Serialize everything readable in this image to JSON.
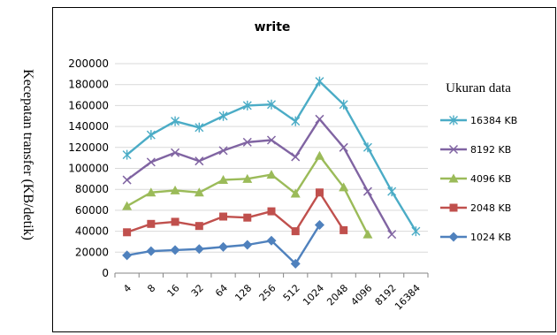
{
  "chart_data": {
    "type": "line",
    "title": "write",
    "ylabel": "Kecepatan transfer (KB/detik)",
    "xlabel": "",
    "legend_title": "Ukuran data",
    "legend_position": "right",
    "grid": true,
    "ylim": [
      0,
      200000
    ],
    "yticks": [
      "0",
      "20000",
      "40000",
      "60000",
      "80000",
      "100000",
      "120000",
      "140000",
      "160000",
      "180000",
      "200000"
    ],
    "categories": [
      "4",
      "8",
      "16",
      "32",
      "64",
      "128",
      "256",
      "512",
      "1024",
      "2048",
      "4096",
      "8192",
      "16384"
    ],
    "series": [
      {
        "name": "16384 KB",
        "color": "#4bacc6",
        "marker": "star",
        "values": [
          113000,
          132000,
          145000,
          139000,
          150000,
          160000,
          161000,
          145000,
          183000,
          161000,
          120000,
          78000,
          40000
        ]
      },
      {
        "name": "8192 KB",
        "color": "#8064a2",
        "marker": "x",
        "values": [
          89000,
          106000,
          115000,
          107000,
          117000,
          125000,
          127000,
          111000,
          147000,
          120000,
          78000,
          37000,
          null
        ]
      },
      {
        "name": "4096 KB",
        "color": "#9bbb59",
        "marker": "triangle",
        "values": [
          64000,
          77000,
          79000,
          77000,
          89000,
          90000,
          94000,
          76000,
          112000,
          82000,
          37000,
          null,
          null
        ]
      },
      {
        "name": "2048 KB",
        "color": "#c0504d",
        "marker": "square",
        "values": [
          39000,
          47000,
          49000,
          45000,
          54000,
          53000,
          59000,
          40000,
          77000,
          41000,
          null,
          null,
          null
        ]
      },
      {
        "name": "1024 KB",
        "color": "#4f81bd",
        "marker": "diamond",
        "values": [
          17000,
          21000,
          22000,
          23000,
          25000,
          27000,
          31000,
          9000,
          46000,
          null,
          null,
          null,
          null
        ]
      }
    ]
  }
}
